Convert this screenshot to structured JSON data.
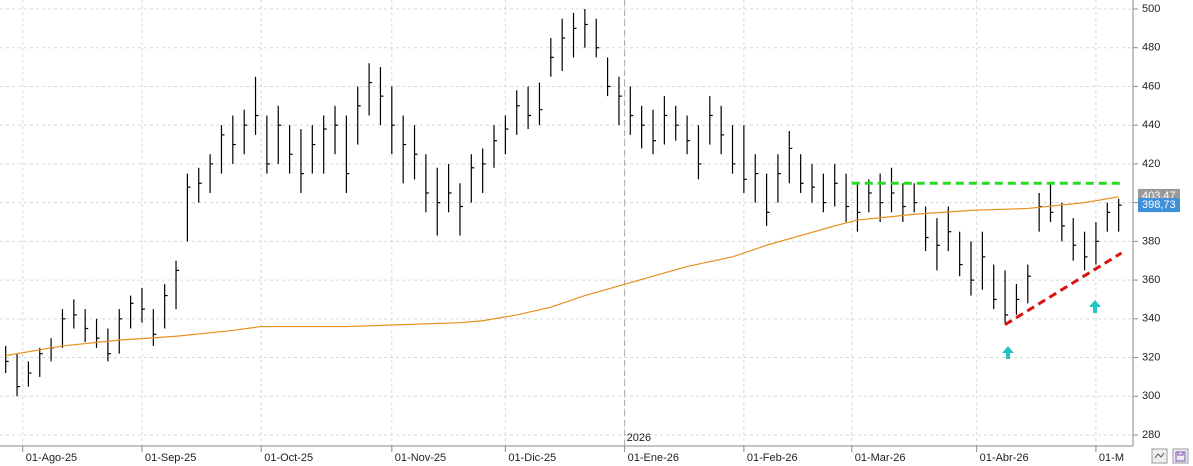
{
  "chart_data": {
    "type": "ohlc",
    "xlim": [
      -1,
      198
    ],
    "ylim": [
      280,
      500
    ],
    "yticks": [
      280,
      300,
      320,
      340,
      360,
      380,
      400,
      420,
      440,
      460,
      480,
      500
    ],
    "xticks": [
      {
        "value": 3,
        "label": "01-Ago-25"
      },
      {
        "value": 24,
        "label": "01-Sep-25"
      },
      {
        "value": 45,
        "label": "01-Oct-25"
      },
      {
        "value": 68,
        "label": "01-Nov-25"
      },
      {
        "value": 88,
        "label": "01-Dic-25"
      },
      {
        "value": 109,
        "label": "01-Ene-26"
      },
      {
        "value": 130,
        "label": "01-Feb-26"
      },
      {
        "value": 149,
        "label": "01-Mar-26"
      },
      {
        "value": 171,
        "label": "01-Abr-26"
      },
      {
        "value": 192,
        "label": "01-M"
      }
    ],
    "year_marker": {
      "value": 109,
      "label": "2026"
    },
    "grid": true,
    "color": "#000000",
    "x": [
      0,
      2,
      4,
      6,
      8,
      10,
      12,
      14,
      16,
      18,
      20,
      22,
      24,
      26,
      28,
      30,
      32,
      34,
      36,
      38,
      40,
      42,
      44,
      46,
      48,
      50,
      52,
      54,
      56,
      58,
      60,
      62,
      64,
      66,
      68,
      70,
      72,
      74,
      76,
      78,
      80,
      82,
      84,
      86,
      88,
      90,
      92,
      94,
      96,
      98,
      100,
      102,
      104,
      106,
      108,
      110,
      112,
      114,
      116,
      118,
      120,
      122,
      124,
      126,
      128,
      130,
      132,
      134,
      136,
      138,
      140,
      142,
      144,
      146,
      148,
      150,
      152,
      154,
      156,
      158,
      160,
      162,
      164,
      166,
      168,
      170,
      172,
      174,
      176,
      178,
      180,
      182,
      184,
      186,
      188,
      190,
      192,
      194,
      196
    ],
    "high": [
      326,
      322,
      318,
      325,
      330,
      345,
      350,
      345,
      340,
      335,
      345,
      352,
      356,
      345,
      358,
      370,
      415,
      418,
      425,
      440,
      445,
      448,
      465,
      445,
      450,
      440,
      438,
      440,
      445,
      450,
      445,
      460,
      472,
      470,
      460,
      445,
      440,
      425,
      418,
      420,
      410,
      425,
      428,
      440,
      445,
      458,
      460,
      462,
      485,
      495,
      498,
      500,
      495,
      475,
      465,
      460,
      450,
      448,
      455,
      450,
      445,
      440,
      455,
      450,
      440,
      440,
      425,
      415,
      425,
      437,
      425,
      420,
      415,
      420,
      415,
      410,
      412,
      415,
      418,
      410,
      410,
      398,
      392,
      398,
      385,
      380,
      385,
      368,
      365,
      358,
      368,
      405,
      410,
      400,
      392,
      385,
      390,
      400,
      402
    ],
    "low": [
      312,
      300,
      305,
      310,
      318,
      325,
      335,
      328,
      325,
      318,
      322,
      335,
      338,
      326,
      335,
      345,
      380,
      400,
      405,
      415,
      420,
      425,
      435,
      415,
      420,
      415,
      405,
      415,
      415,
      425,
      405,
      430,
      445,
      440,
      425,
      410,
      412,
      395,
      383,
      395,
      383,
      400,
      405,
      418,
      425,
      435,
      438,
      440,
      465,
      468,
      475,
      480,
      475,
      455,
      440,
      435,
      428,
      425,
      430,
      432,
      425,
      412,
      430,
      425,
      415,
      405,
      400,
      388,
      400,
      410,
      405,
      400,
      395,
      398,
      390,
      385,
      395,
      390,
      395,
      390,
      395,
      375,
      365,
      375,
      362,
      352,
      355,
      345,
      337,
      342,
      348,
      385,
      390,
      380,
      370,
      365,
      368,
      385,
      385
    ],
    "close": [
      318,
      305,
      312,
      322,
      325,
      340,
      342,
      335,
      330,
      322,
      340,
      348,
      345,
      332,
      352,
      365,
      408,
      410,
      420,
      435,
      430,
      440,
      445,
      420,
      440,
      425,
      415,
      430,
      438,
      440,
      415,
      450,
      462,
      455,
      440,
      430,
      425,
      405,
      400,
      405,
      398,
      418,
      420,
      432,
      438,
      450,
      445,
      448,
      475,
      485,
      490,
      492,
      480,
      460,
      455,
      445,
      440,
      432,
      445,
      440,
      432,
      420,
      445,
      435,
      420,
      412,
      415,
      395,
      415,
      428,
      410,
      408,
      400,
      410,
      398,
      395,
      405,
      400,
      405,
      398,
      400,
      382,
      378,
      385,
      368,
      360,
      372,
      350,
      342,
      350,
      362,
      398,
      395,
      388,
      378,
      372,
      380,
      395,
      398.73
    ],
    "ma": {
      "color": "#e8901e",
      "x": [
        0,
        10,
        20,
        30,
        40,
        45,
        60,
        70,
        80,
        84,
        90,
        96,
        102,
        108,
        114,
        120,
        128,
        134,
        140,
        146,
        150,
        160,
        170,
        180,
        190,
        196
      ],
      "values": [
        321,
        326,
        329,
        331,
        334,
        336,
        336,
        337,
        338,
        339,
        342,
        346,
        352,
        357,
        362,
        367,
        372,
        378,
        383,
        388,
        391,
        394,
        396,
        397,
        400,
        403
      ]
    },
    "resistance": {
      "value": 410,
      "x": [
        149,
        196.5
      ],
      "color": "#22dd22"
    },
    "trendline": {
      "x": [
        176,
        196.5
      ],
      "y": [
        337,
        374
      ],
      "color": "#dd1111"
    },
    "last_labels": [
      {
        "value": 403.47,
        "label": "403,47",
        "color": "#9a9a9a"
      },
      {
        "value": 398.73,
        "label": "398,73",
        "color": "#3d8fd8"
      }
    ]
  }
}
